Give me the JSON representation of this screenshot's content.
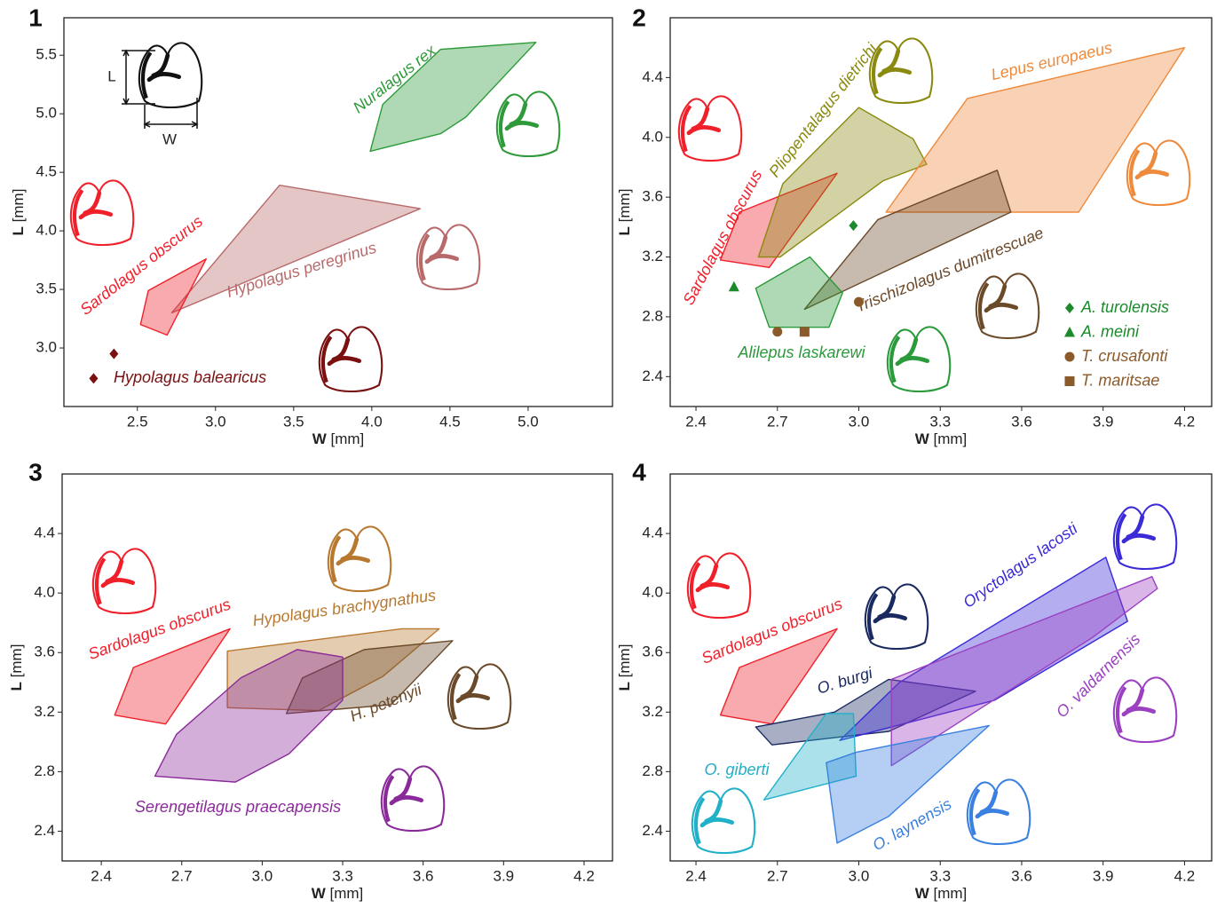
{
  "chart_data": [
    {
      "type": "polygon",
      "panel": "1",
      "x_label": "W",
      "x_unit": "[mm]",
      "y_label": "L",
      "y_unit": "[mm]",
      "inset_labels": {
        "length": "L",
        "width": "W"
      },
      "xlim": [
        2.03,
        5.54
      ],
      "ylim": [
        2.5,
        5.82
      ],
      "xticks": [
        2.5,
        {
          "value": 3,
          "label": "3.0"
        },
        3.5,
        {
          "value": 4,
          "label": "4.0"
        },
        4.5,
        {
          "value": 5,
          "label": "5.0"
        }
      ],
      "yticks": [
        {
          "value": 3,
          "label": "3.0"
        },
        3.5,
        {
          "value": 4,
          "label": "4.0"
        },
        4.5,
        {
          "value": 5,
          "label": "5.0"
        },
        5.5
      ],
      "series": [
        {
          "name": "Nuralagus rex",
          "color": "#2e9a3a",
          "x": [
            3.99,
            4.07,
            4.44,
            5.05,
            4.6,
            4.44
          ],
          "y": [
            4.68,
            5.08,
            5.55,
            5.61,
            4.97,
            4.83
          ]
        },
        {
          "name": "Hypolagus peregrinus",
          "color": "#b86a6a",
          "x": [
            2.72,
            3.41,
            4.31
          ],
          "y": [
            3.3,
            4.39,
            4.19
          ]
        },
        {
          "name": "Sardolagus obscurus",
          "color": "#f0202a",
          "x": [
            2.52,
            2.57,
            2.94,
            2.69
          ],
          "y": [
            3.2,
            3.49,
            3.76,
            3.11
          ]
        },
        {
          "name": "Hypolagus balearicus",
          "color": "#7a1010",
          "marker": "diamond",
          "x": [
            2.22,
            2.35
          ],
          "y": [
            2.74,
            2.95
          ]
        }
      ]
    },
    {
      "type": "polygon",
      "panel": "2",
      "x_label": "W",
      "x_unit": "[mm]",
      "y_label": "L",
      "y_unit": "[mm]",
      "legend": "lower right",
      "xlim": [
        2.305,
        4.3
      ],
      "ylim": [
        2.2,
        4.8
      ],
      "xticks": [
        2.4,
        2.7,
        {
          "value": 3,
          "label": "3.0"
        },
        3.3,
        3.6,
        3.9,
        4.2
      ],
      "yticks": [
        2.4,
        2.8,
        3.2,
        3.6,
        {
          "value": 4,
          "label": "4.0"
        },
        4.4
      ],
      "series": [
        {
          "name": "Sardolagus obscurus",
          "color": "#f0202a",
          "x": [
            2.49,
            2.56,
            2.92,
            2.67
          ],
          "y": [
            3.18,
            3.5,
            3.76,
            3.13
          ]
        },
        {
          "name": "Pliopentalagus dietrichi",
          "color": "#8a8a10",
          "x": [
            2.63,
            2.72,
            3.0,
            3.2,
            3.25,
            3.09,
            2.71
          ],
          "y": [
            3.2,
            3.69,
            4.2,
            3.99,
            3.82,
            3.71,
            3.2
          ]
        },
        {
          "name": "Lepus europaeus",
          "color": "#ee8a3c",
          "x": [
            3.1,
            3.4,
            4.2,
            3.81
          ],
          "y": [
            3.5,
            4.26,
            4.6,
            3.5
          ]
        },
        {
          "name": "Trischizolagus dumitrescuae",
          "color": "#6b4a2a",
          "x": [
            2.8,
            3.07,
            3.51,
            3.56
          ],
          "y": [
            2.85,
            3.45,
            3.78,
            3.5
          ]
        },
        {
          "name": "Alilepus laskarewi",
          "color": "#2a9a3a",
          "x": [
            2.62,
            2.82,
            2.94,
            2.89,
            2.67
          ],
          "y": [
            2.99,
            3.2,
            2.96,
            2.73,
            2.73
          ]
        },
        {
          "name": "A. turolensis",
          "color": "#1a8a2a",
          "marker": "diamond",
          "x": [
            2.98
          ],
          "y": [
            3.41
          ]
        },
        {
          "name": "A. meini",
          "color": "#1a8a2a",
          "marker": "triangle",
          "x": [
            2.54
          ],
          "y": [
            3.0
          ]
        },
        {
          "name": "T. crusafonti",
          "color": "#8a5a2a",
          "marker": "circle",
          "x": [
            2.7,
            3.0
          ],
          "y": [
            2.7,
            2.9
          ]
        },
        {
          "name": "T. maritsae",
          "color": "#8a5a2a",
          "marker": "square",
          "x": [
            2.8
          ],
          "y": [
            2.7
          ]
        }
      ]
    },
    {
      "type": "polygon",
      "panel": "3",
      "x_label": "W",
      "x_unit": "[mm]",
      "y_label": "L",
      "y_unit": "[mm]",
      "xlim": [
        2.254,
        4.306
      ],
      "ylim": [
        2.2,
        4.8
      ],
      "xticks": [
        2.4,
        2.7,
        {
          "value": 3,
          "label": "3.0"
        },
        3.3,
        3.6,
        3.9,
        4.2
      ],
      "yticks": [
        2.4,
        2.8,
        3.2,
        3.6,
        {
          "value": 4,
          "label": "4.0"
        },
        4.4
      ],
      "series": [
        {
          "name": "Sardolagus obscurus",
          "color": "#f0202a",
          "x": [
            2.45,
            2.52,
            2.88,
            2.64
          ],
          "y": [
            3.18,
            3.5,
            3.76,
            3.12
          ]
        },
        {
          "name": "Hypolagus brachygnathus",
          "color": "#b87830",
          "x": [
            2.87,
            3.52,
            3.66,
            3.45,
            3.21,
            2.87
          ],
          "y": [
            3.61,
            3.76,
            3.76,
            3.44,
            3.21,
            3.23
          ]
        },
        {
          "name": "H. petenyii",
          "color": "#6a4a2a",
          "x": [
            3.09,
            3.15,
            3.38,
            3.71,
            3.48
          ],
          "y": [
            3.19,
            3.43,
            3.62,
            3.68,
            3.25
          ]
        },
        {
          "name": "Serengetilagus praecapensis",
          "color": "#8a2a9a",
          "x": [
            2.6,
            2.68,
            2.92,
            3.13,
            3.3,
            3.3,
            3.1,
            2.9
          ],
          "y": [
            2.77,
            3.05,
            3.43,
            3.62,
            3.57,
            3.28,
            2.92,
            2.73
          ]
        }
      ]
    },
    {
      "type": "polygon",
      "panel": "4",
      "x_label": "W",
      "x_unit": "[mm]",
      "y_label": "L",
      "y_unit": "[mm]",
      "xlim": [
        2.305,
        4.3
      ],
      "ylim": [
        2.2,
        4.8
      ],
      "xticks": [
        2.4,
        2.7,
        {
          "value": 3,
          "label": "3.0"
        },
        3.3,
        3.6,
        3.9,
        4.2
      ],
      "yticks": [
        2.4,
        2.8,
        3.2,
        3.6,
        {
          "value": 4,
          "label": "4.0"
        },
        4.4
      ],
      "series": [
        {
          "name": "Sardolagus obscurus",
          "color": "#f0202a",
          "x": [
            2.49,
            2.56,
            2.92,
            2.68
          ],
          "y": [
            3.18,
            3.5,
            3.76,
            3.12
          ]
        },
        {
          "name": "O. burgi",
          "color": "#1a2a60",
          "x": [
            2.62,
            2.91,
            3.11,
            3.43,
            3.11,
            2.68
          ],
          "y": [
            3.1,
            3.2,
            3.42,
            3.34,
            3.07,
            2.98
          ]
        },
        {
          "name": "Oryctolagus lacosti",
          "color": "#3a2ad8",
          "x": [
            2.93,
            3.15,
            3.91,
            3.99,
            3.5
          ],
          "y": [
            3.01,
            3.4,
            4.24,
            3.81,
            3.28
          ]
        },
        {
          "name": "O. valdarnensis",
          "color": "#9a40c0",
          "x": [
            3.12,
            3.12,
            4.08,
            4.1,
            3.86,
            3.47
          ],
          "y": [
            2.84,
            3.42,
            4.11,
            4.03,
            3.7,
            3.25
          ]
        },
        {
          "name": "O. giberti",
          "color": "#20b0c8",
          "x": [
            2.65,
            2.88,
            2.98,
            2.99
          ],
          "y": [
            2.61,
            3.19,
            3.19,
            2.77
          ]
        },
        {
          "name": "O. laynensis",
          "color": "#3a80e0",
          "x": [
            2.88,
            2.92,
            3.11,
            3.48,
            2.99
          ],
          "y": [
            2.86,
            2.32,
            2.5,
            3.11,
            2.93
          ]
        }
      ]
    }
  ]
}
